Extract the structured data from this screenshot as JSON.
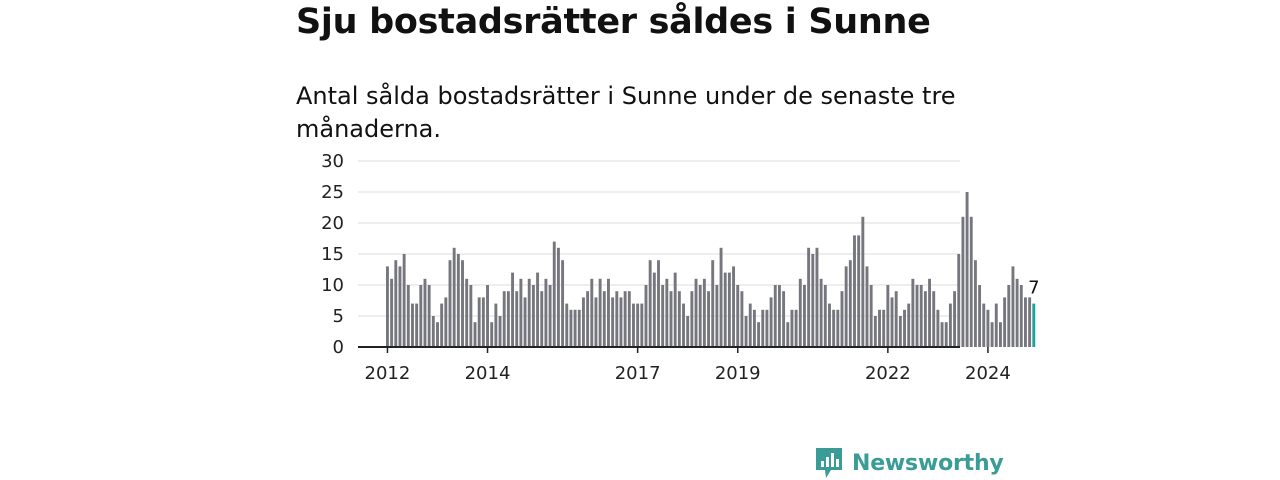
{
  "header": {
    "title": "Sju bostadsrätter såldes i Sunne",
    "subtitle": "Antal sålda bostadsrätter i Sunne under de senaste tre månaderna."
  },
  "brand": {
    "name": "Newsworthy",
    "icon": "newsworthy-logo-icon",
    "color": "#3a9c97"
  },
  "colors": {
    "bar": "#76767e",
    "highlight": "#1aa39c",
    "grid": "#dddddd",
    "axis": "#222222"
  },
  "chart_data": {
    "type": "bar",
    "title": "Sju bostadsrätter såldes i Sunne",
    "subtitle": "Antal sålda bostadsrätter i Sunne under de senaste tre månaderna.",
    "ylim": [
      0,
      30
    ],
    "yticks": [
      0,
      5,
      10,
      15,
      20,
      25,
      30
    ],
    "grid": true,
    "xtick_labels": [
      "2012",
      "2014",
      "2017",
      "2019",
      "2022",
      "2024"
    ],
    "xtick_months": [
      0,
      24,
      60,
      84,
      120,
      144
    ],
    "start": "2012-01",
    "interval": "month",
    "values": [
      13,
      11,
      14,
      13,
      15,
      10,
      7,
      7,
      10,
      11,
      10,
      5,
      4,
      7,
      8,
      14,
      16,
      15,
      14,
      11,
      10,
      4,
      8,
      8,
      10,
      4,
      7,
      5,
      9,
      9,
      12,
      9,
      11,
      8,
      11,
      10,
      12,
      9,
      11,
      10,
      17,
      16,
      14,
      7,
      6,
      6,
      6,
      8,
      9,
      11,
      8,
      11,
      9,
      11,
      8,
      9,
      8,
      9,
      9,
      7,
      7,
      7,
      10,
      14,
      12,
      14,
      10,
      11,
      9,
      12,
      9,
      7,
      5,
      9,
      11,
      10,
      11,
      9,
      14,
      10,
      16,
      12,
      12,
      13,
      10,
      9,
      5,
      7,
      6,
      4,
      6,
      6,
      8,
      10,
      10,
      9,
      4,
      6,
      6,
      11,
      10,
      16,
      15,
      16,
      11,
      10,
      7,
      6,
      6,
      9,
      13,
      14,
      18,
      18,
      21,
      13,
      10,
      5,
      6,
      6,
      10,
      8,
      9,
      5,
      6,
      7,
      11,
      10,
      10,
      9,
      11,
      9,
      6,
      4,
      4,
      7,
      9,
      15,
      21,
      25,
      21,
      14,
      10,
      7,
      6,
      4,
      7,
      4,
      8,
      10,
      13,
      11,
      10,
      8,
      8,
      7
    ],
    "highlight_last": true,
    "last_value_label": "7"
  }
}
